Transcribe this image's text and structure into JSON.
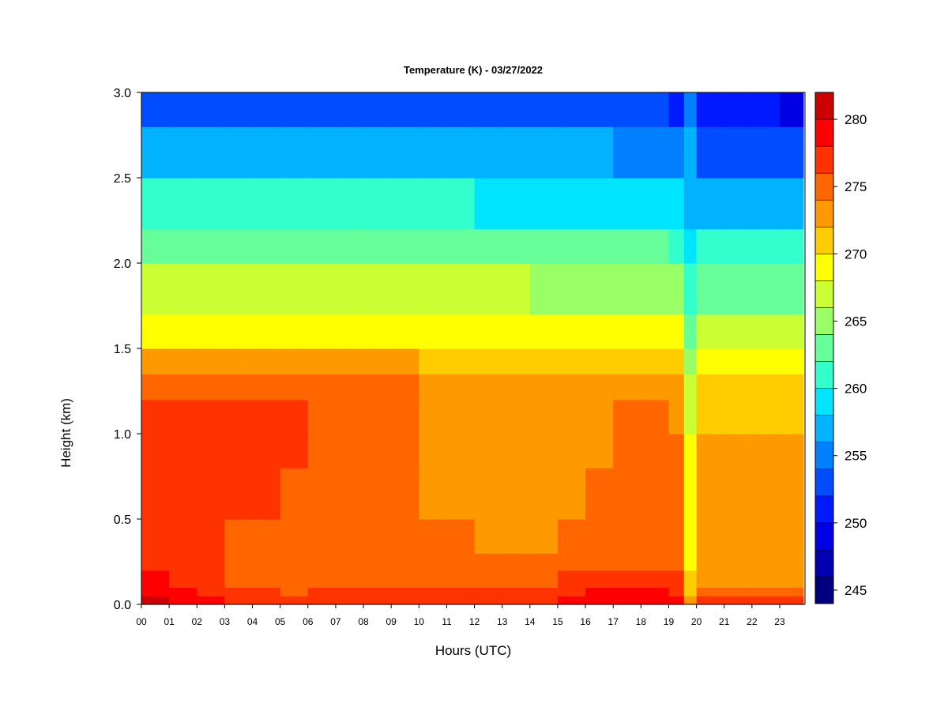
{
  "chart_data": {
    "type": "heatmap",
    "title": "Temperature (K) - 03/27/2022",
    "xlabel": "Hours (UTC)",
    "ylabel": "Height (km)",
    "xlim": [
      0,
      23.85
    ],
    "ylim": [
      0.0,
      3.0
    ],
    "x_ticks": [
      "00",
      "01",
      "02",
      "03",
      "04",
      "05",
      "06",
      "07",
      "08",
      "09",
      "10",
      "11",
      "12",
      "13",
      "14",
      "15",
      "16",
      "17",
      "18",
      "19",
      "20",
      "21",
      "22",
      "23"
    ],
    "y_ticks": [
      "0.0",
      "0.5",
      "1.0",
      "1.5",
      "2.0",
      "2.5",
      "3.0"
    ],
    "colorbar": {
      "range": [
        244,
        282
      ],
      "levels": [
        244,
        246,
        248,
        250,
        252,
        254,
        256,
        258,
        260,
        262,
        264,
        266,
        268,
        270,
        272,
        274,
        276,
        278,
        280,
        282
      ],
      "colors": [
        "#00007f",
        "#0000b2",
        "#0000e5",
        "#0019ff",
        "#004cff",
        "#007fff",
        "#00b2ff",
        "#00e5ff",
        "#33ffcc",
        "#66ff99",
        "#99ff66",
        "#ccff33",
        "#ffff00",
        "#ffcc00",
        "#ff9900",
        "#ff6600",
        "#ff3300",
        "#ff0000",
        "#cc0000",
        "#800000"
      ],
      "tick_values": [
        245,
        250,
        255,
        260,
        265,
        270,
        275,
        280
      ],
      "tick_labels": [
        "245",
        "250",
        "255",
        "260",
        "265",
        "270",
        "275",
        "280"
      ]
    },
    "hours": [
      0,
      1,
      2,
      3,
      4,
      5,
      6,
      7,
      8,
      9,
      10,
      11,
      12,
      13,
      14,
      15,
      16,
      17,
      18,
      19,
      19.55,
      20,
      21,
      22,
      23,
      23.85
    ],
    "heights_km": [
      0.0,
      0.05,
      0.1,
      0.2,
      0.3,
      0.5,
      0.8,
      1.0,
      1.2,
      1.35,
      1.5,
      1.7,
      2.0,
      2.2,
      2.5,
      2.8,
      3.0
    ],
    "temperature_K": [
      [
        280,
        279,
        278,
        277,
        276,
        276,
        277,
        277,
        277,
        277,
        277,
        277,
        277,
        277,
        277,
        278,
        279,
        279,
        279,
        278,
        272,
        276,
        276,
        276,
        276,
        276
      ],
      [
        279,
        278,
        277,
        276,
        276,
        275,
        276,
        276,
        276,
        276,
        276,
        276,
        276,
        276,
        276,
        277,
        278,
        278,
        278,
        277,
        271,
        274,
        274,
        274,
        274,
        274
      ],
      [
        278,
        277,
        276,
        275,
        275,
        275,
        275,
        275,
        275,
        275,
        275,
        275,
        275,
        275,
        275,
        276,
        277,
        277,
        277,
        276,
        270,
        273,
        273,
        273,
        273,
        273
      ],
      [
        277,
        277,
        276,
        275,
        275,
        275,
        275,
        274,
        274,
        274,
        274,
        274,
        274,
        274,
        274,
        275,
        275,
        275,
        275,
        275,
        269,
        272,
        272,
        272,
        272,
        272
      ],
      [
        277,
        277,
        276,
        275,
        275,
        275,
        274,
        274,
        274,
        274,
        274,
        274,
        273,
        273,
        273,
        274,
        274,
        275,
        275,
        274,
        268,
        272,
        272,
        272,
        272,
        272
      ],
      [
        277,
        277,
        276,
        276,
        276,
        275,
        274,
        274,
        274,
        274,
        273,
        273,
        273,
        273,
        273,
        273,
        274,
        275,
        275,
        274,
        268,
        272,
        272,
        272,
        272,
        272
      ],
      [
        277,
        277,
        276,
        276,
        276,
        276,
        275,
        275,
        275,
        275,
        273,
        273,
        272,
        272,
        272,
        272,
        273,
        274,
        275,
        274,
        268,
        272,
        272,
        272,
        272,
        272
      ],
      [
        276,
        276,
        276,
        276,
        276,
        276,
        275,
        275,
        275,
        275,
        273,
        273,
        272,
        272,
        272,
        272,
        273,
        274,
        274,
        273,
        267,
        271,
        271,
        271,
        271,
        271
      ],
      [
        275,
        275,
        275,
        275,
        274,
        274,
        274,
        274,
        274,
        274,
        273,
        273,
        272,
        272,
        272,
        272,
        273,
        273,
        273,
        273,
        266,
        270,
        270,
        270,
        270,
        270
      ],
      [
        273,
        273,
        273,
        273,
        272,
        272,
        272,
        272,
        272,
        272,
        271,
        271,
        271,
        271,
        271,
        271,
        271,
        271,
        271,
        270,
        264,
        268,
        268,
        268,
        268,
        268
      ],
      [
        269,
        269,
        269,
        269,
        269,
        269,
        269,
        269,
        269,
        269,
        269,
        269,
        269,
        269,
        268,
        268,
        268,
        268,
        268,
        268,
        262,
        266,
        266,
        266,
        266,
        266
      ],
      [
        266,
        266,
        266,
        266,
        266,
        266,
        266,
        266,
        266,
        266,
        266,
        266,
        266,
        266,
        265,
        265,
        265,
        265,
        265,
        265,
        260,
        263,
        263,
        263,
        263,
        263
      ],
      [
        263,
        263,
        263,
        263,
        263,
        263,
        263,
        263,
        263,
        263,
        263,
        263,
        263,
        263,
        262,
        262,
        262,
        262,
        262,
        261,
        258,
        260,
        260,
        260,
        260,
        260
      ],
      [
        260,
        260,
        260,
        260,
        260,
        260,
        260,
        260,
        260,
        260,
        260,
        260,
        259,
        259,
        259,
        259,
        259,
        259,
        258,
        258,
        257,
        257,
        257,
        257,
        257,
        257
      ],
      [
        256,
        256,
        256,
        256,
        256,
        256,
        256,
        256,
        256,
        256,
        256,
        256,
        256,
        256,
        256,
        256,
        256,
        255,
        255,
        254,
        256,
        253,
        253,
        253,
        253,
        253
      ],
      [
        253,
        253,
        253,
        253,
        253,
        253,
        253,
        253,
        253,
        253,
        253,
        253,
        253,
        253,
        253,
        253,
        252,
        252,
        252,
        251,
        255,
        251,
        250,
        250,
        249,
        248
      ],
      [
        252,
        252,
        252,
        252,
        252,
        252,
        252,
        252,
        252,
        252,
        252,
        252,
        252,
        252,
        252,
        252,
        251,
        251,
        251,
        250,
        255,
        250,
        249,
        249,
        248,
        247
      ]
    ]
  }
}
